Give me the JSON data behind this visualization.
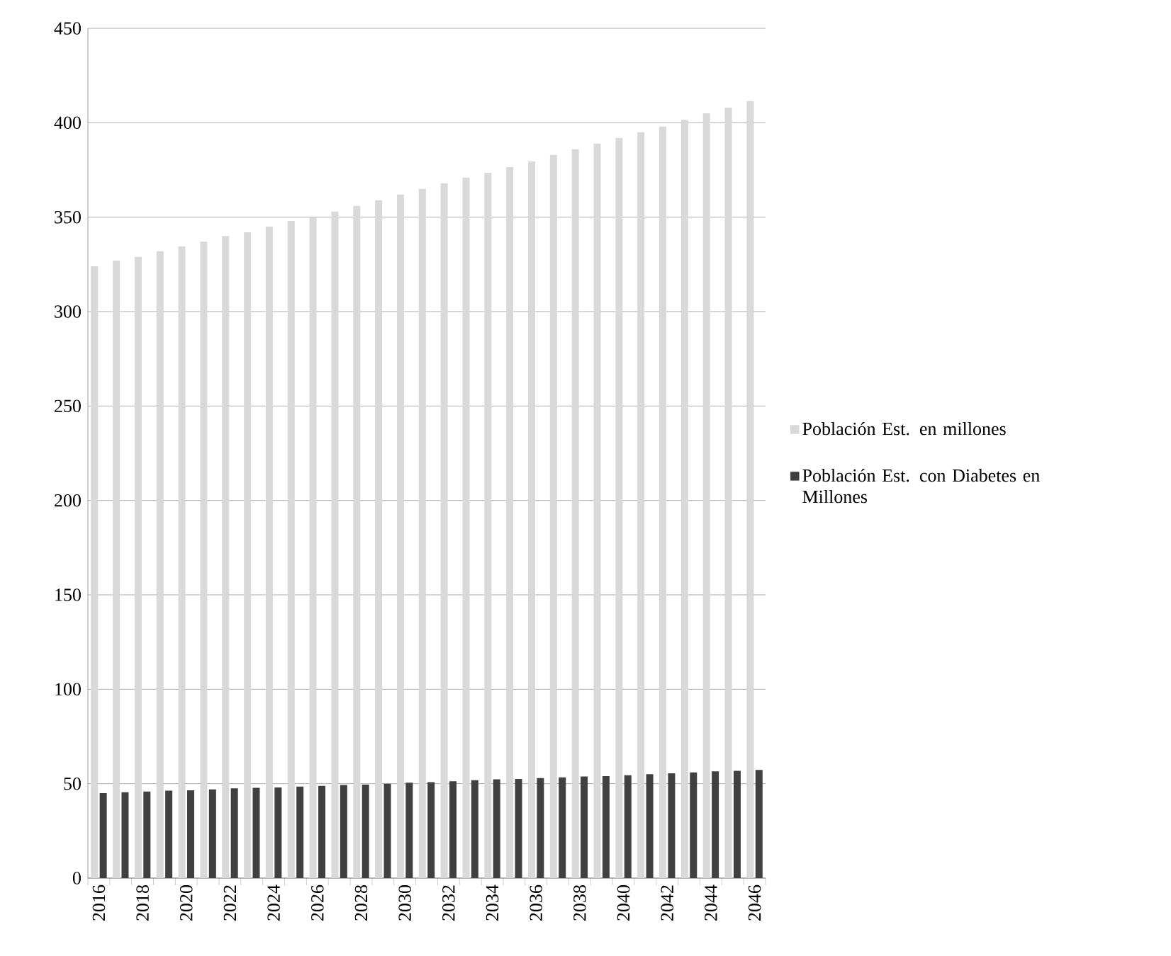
{
  "chart_data": {
    "type": "bar",
    "categories": [
      "2016",
      null,
      "2018",
      null,
      "2020",
      null,
      "2022",
      null,
      "2024",
      null,
      "2026",
      null,
      "2028",
      null,
      "2030",
      null,
      "2032",
      null,
      "2034",
      null,
      "2036",
      null,
      "2038",
      null,
      "2040",
      null,
      "2042",
      null,
      "2044",
      null,
      "2046"
    ],
    "series": [
      {
        "name": "Población Est. en millones",
        "color": "#d9d9d9",
        "values": [
          324,
          327,
          329,
          332,
          334.5,
          337,
          340,
          342,
          345,
          348,
          350,
          353,
          356,
          359,
          362,
          365,
          368,
          371,
          373.5,
          376.5,
          379.5,
          383,
          386,
          389,
          392,
          395,
          398,
          401.5,
          405,
          408,
          411.5
        ]
      },
      {
        "name": "Población Est. con Diabetes en Millones",
        "color": "#404040",
        "values": [
          45,
          45.5,
          45.8,
          46.3,
          46.5,
          47,
          47.5,
          47.8,
          48,
          48.5,
          48.8,
          49.3,
          49.5,
          50,
          50.5,
          50.8,
          51.3,
          51.8,
          52.3,
          52.5,
          53,
          53.3,
          53.8,
          54,
          54.5,
          55,
          55.5,
          56,
          56.5,
          56.8,
          57.3
        ]
      }
    ],
    "ylim": [
      0,
      450
    ],
    "yticks": [
      0,
      50,
      100,
      150,
      200,
      250,
      300,
      350,
      400,
      450
    ],
    "grid": "y",
    "legend": "right"
  }
}
